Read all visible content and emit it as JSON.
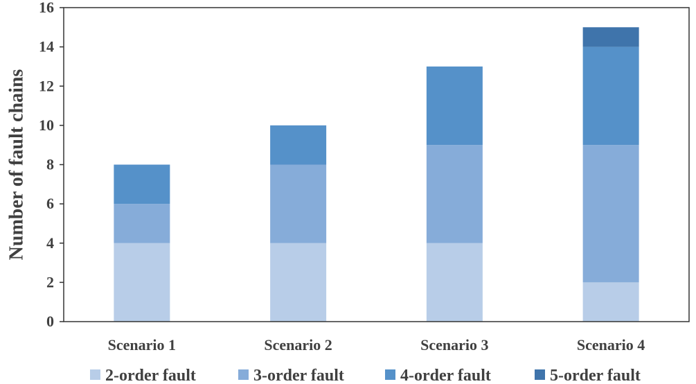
{
  "chart_data": {
    "type": "bar",
    "stacked": true,
    "categories": [
      "Scenario 1",
      "Scenario 2",
      "Scenario 3",
      "Scenario 4"
    ],
    "series": [
      {
        "name": "2-order fault",
        "values": [
          4,
          4,
          4,
          2
        ],
        "color": "#b8cde8"
      },
      {
        "name": "3-order fault",
        "values": [
          2,
          4,
          5,
          7
        ],
        "color": "#86acd9"
      },
      {
        "name": "4-order fault",
        "values": [
          2,
          2,
          4,
          5
        ],
        "color": "#5591c9"
      },
      {
        "name": "5-order fault",
        "values": [
          0,
          0,
          0,
          1
        ],
        "color": "#3f74ab"
      }
    ],
    "title": "",
    "xlabel": "",
    "ylabel": "Number of fault chains",
    "ylim": [
      0,
      16
    ],
    "yticks": [
      0,
      2,
      4,
      6,
      8,
      10,
      12,
      14,
      16
    ],
    "grid": false,
    "legend": "bottom"
  }
}
